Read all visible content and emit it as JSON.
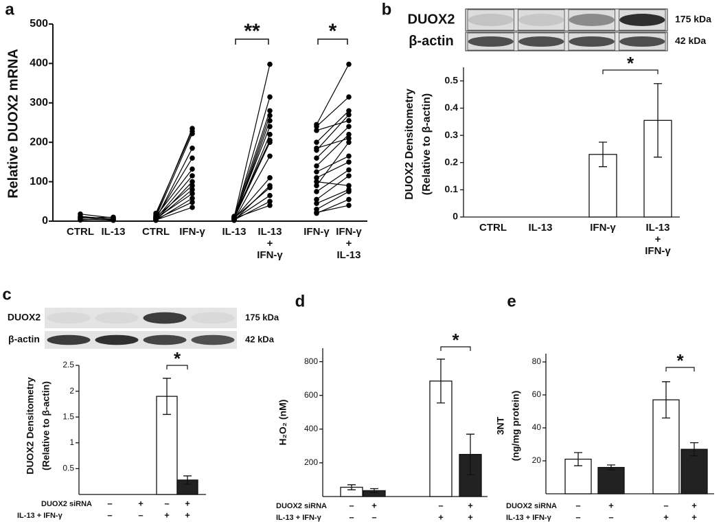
{
  "chart_data": [
    {
      "type": "paired",
      "label": "a",
      "ylabel": "Relative DUOX2 mRNA",
      "ylim": [
        0,
        500
      ],
      "yticks": [
        0,
        100,
        200,
        300,
        400,
        500
      ],
      "color": "#000000",
      "groups": [
        {
          "categories": [
            "CTRL",
            "IL-13"
          ],
          "pairs": [
            [
              18,
              8
            ],
            [
              12,
              5
            ],
            [
              8,
              10
            ],
            [
              5,
              3
            ],
            [
              3,
              6
            ],
            [
              10,
              2
            ]
          ]
        },
        {
          "categories": [
            "CTRL",
            "IFN-γ"
          ],
          "pairs": [
            [
              15,
              235
            ],
            [
              20,
              228
            ],
            [
              10,
              222
            ],
            [
              5,
              185
            ],
            [
              8,
              160
            ],
            [
              12,
              132
            ],
            [
              6,
              115
            ],
            [
              3,
              100
            ],
            [
              10,
              90
            ],
            [
              4,
              80
            ],
            [
              7,
              70
            ],
            [
              2,
              58
            ],
            [
              5,
              48
            ],
            [
              3,
              35
            ]
          ]
        },
        {
          "categories": [
            "IL-13",
            [
              "IL-13",
              "+",
              "IFN-γ"
            ]
          ],
          "annotation": "**",
          "pairs": [
            [
              10,
              398
            ],
            [
              8,
              315
            ],
            [
              12,
              280
            ],
            [
              6,
              268
            ],
            [
              5,
              255
            ],
            [
              9,
              240
            ],
            [
              4,
              220
            ],
            [
              11,
              205
            ],
            [
              7,
              200
            ],
            [
              3,
              165
            ],
            [
              6,
              110
            ],
            [
              2,
              90
            ],
            [
              8,
              85
            ],
            [
              5,
              65
            ],
            [
              3,
              50
            ],
            [
              7,
              40
            ]
          ]
        },
        {
          "categories": [
            "IFN-γ",
            [
              "IFN-γ",
              "+",
              "IL-13"
            ]
          ],
          "annotation": "*",
          "pairs": [
            [
              245,
              398
            ],
            [
              240,
              315
            ],
            [
              230,
              255
            ],
            [
              200,
              280
            ],
            [
              185,
              210
            ],
            [
              180,
              270
            ],
            [
              160,
              240
            ],
            [
              140,
              220
            ],
            [
              125,
              165
            ],
            [
              110,
              150
            ],
            [
              100,
              90
            ],
            [
              90,
              200
            ],
            [
              75,
              130
            ],
            [
              55,
              115
            ],
            [
              45,
              80
            ],
            [
              30,
              75
            ],
            [
              22,
              40
            ],
            [
              20,
              55
            ]
          ]
        }
      ]
    },
    {
      "type": "bar",
      "label": "b",
      "blot": [
        {
          "name": "DUOX2",
          "size": "175 kDa"
        },
        {
          "name": "β-actin",
          "size": "42 kDa"
        }
      ],
      "ylabel": [
        "DUOX2 Densitometry",
        "(Relative to β-actin)"
      ],
      "categories": [
        "CTRL",
        "IL-13",
        "IFN-γ",
        [
          "IL-13",
          "+",
          "IFN-γ"
        ]
      ],
      "values": [
        null,
        null,
        0.23,
        0.355
      ],
      "errors": [
        null,
        null,
        0.045,
        0.135
      ],
      "colors": [
        "#ffffff",
        "#ffffff",
        "#ffffff",
        "#ffffff"
      ],
      "ylim": [
        0,
        0.55
      ],
      "yticks": [
        0,
        0.1,
        0.2,
        0.3,
        0.4,
        0.5
      ],
      "annotation": "*"
    },
    {
      "type": "bar",
      "label": "c",
      "blot": [
        {
          "name": "DUOX2",
          "size": "175 kDa"
        },
        {
          "name": "β-actin",
          "size": "42 kDa"
        }
      ],
      "ylabel": [
        "DUOX2 Densitometry",
        "(Relative to β-actin)"
      ],
      "rows": [
        {
          "label": "DUOX2 siRNA",
          "signs": [
            "–",
            "+",
            "–",
            "+"
          ]
        },
        {
          "label": "IL-13 + IFN-γ",
          "signs": [
            "–",
            "–",
            "+",
            "+"
          ]
        }
      ],
      "values": [
        null,
        null,
        1.9,
        0.28
      ],
      "errors": [
        null,
        null,
        0.35,
        0.08
      ],
      "colors": [
        "#ffffff",
        "#222222",
        "#ffffff",
        "#222222"
      ],
      "ylim": [
        0,
        2.5
      ],
      "yticks": [
        0.5,
        1,
        1.5,
        2,
        2.5
      ],
      "annotation": "*"
    },
    {
      "type": "bar",
      "label": "d",
      "ylabel": [
        "H₂O₂ (nM)"
      ],
      "rows": [
        {
          "label": "DUOX2 siRNA",
          "signs": [
            "–",
            "+",
            "–",
            "+"
          ]
        },
        {
          "label": "IL-13 + IFN-γ",
          "signs": [
            "–",
            "–",
            "+",
            "+"
          ]
        }
      ],
      "values": [
        55,
        35,
        685,
        250
      ],
      "errors": [
        15,
        12,
        130,
        120
      ],
      "colors": [
        "#ffffff",
        "#222222",
        "#ffffff",
        "#222222"
      ],
      "ylim": [
        0,
        880
      ],
      "yticks": [
        200,
        400,
        600,
        800
      ],
      "annotation": "*"
    },
    {
      "type": "bar",
      "label": "e",
      "ylabel": [
        "3NT",
        "(ng/mg protein)"
      ],
      "rows": [
        {
          "label": "DUOX2 siRNA",
          "signs": [
            "–",
            "+",
            "–",
            "+"
          ]
        },
        {
          "label": "IL-13 + IFN-γ",
          "signs": [
            "–",
            "–",
            "+",
            "+"
          ]
        }
      ],
      "values": [
        21,
        16,
        57,
        27
      ],
      "errors": [
        4,
        1.5,
        11,
        4
      ],
      "colors": [
        "#ffffff",
        "#222222",
        "#ffffff",
        "#222222"
      ],
      "ylim": [
        0,
        85
      ],
      "yticks": [
        20,
        40,
        60,
        80
      ],
      "annotation": "*"
    }
  ]
}
